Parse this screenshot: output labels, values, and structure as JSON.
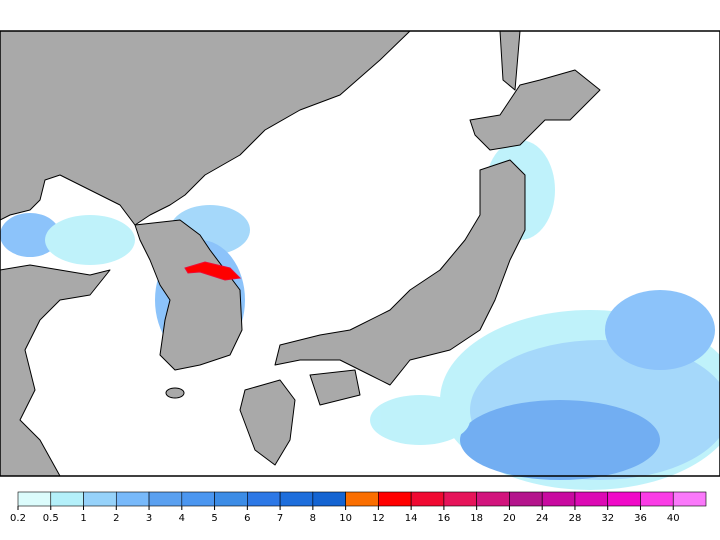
{
  "colorbar": {
    "labels": [
      0.2,
      0.5,
      1,
      2,
      3,
      4,
      5,
      6,
      7,
      8,
      10,
      12,
      14,
      16,
      18,
      20,
      24,
      28,
      32,
      36,
      40
    ],
    "colors": [
      "#dcfcfc",
      "#b4f0fa",
      "#96d2fa",
      "#78b9fa",
      "#5aa0f0",
      "#4b96f0",
      "#3c8ce6",
      "#2d78e6",
      "#1e6edc",
      "#1464d2",
      "#fa6e00",
      "#ff0000",
      "#f00a32",
      "#e6145a",
      "#d2147d",
      "#b4148c",
      "#c80aa0",
      "#dc0ab4",
      "#f00ac8",
      "#fa3ce6",
      "#fa78fa"
    ]
  }
}
